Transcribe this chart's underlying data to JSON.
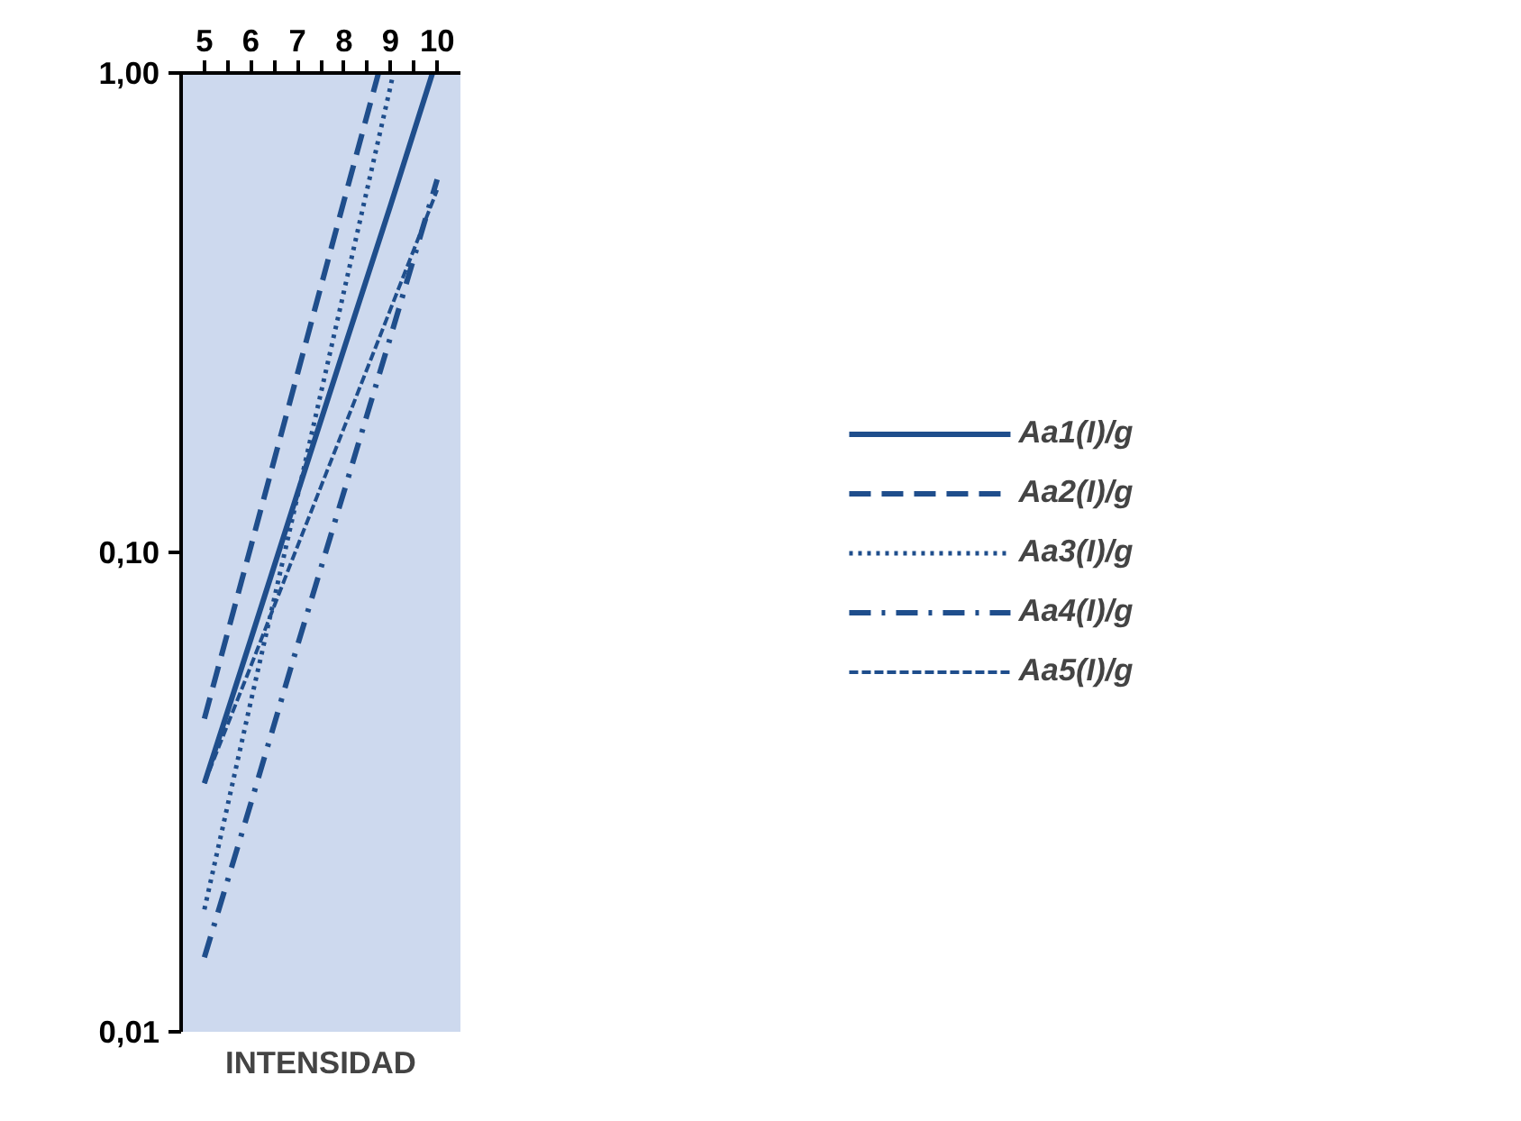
{
  "chart_data": {
    "type": "line",
    "xlabel": "INTENSIDAD",
    "log": "y",
    "grid": false,
    "legend": "right",
    "marker": "none",
    "xlim": [
      4.5,
      10.5
    ],
    "xticks": [
      5,
      6,
      7,
      8,
      9,
      10,
      {
        "value": 5.5,
        "label": null
      },
      {
        "value": 6.5,
        "label": null
      },
      {
        "value": 7.5,
        "label": null
      },
      {
        "value": 8.5,
        "label": null
      },
      {
        "value": 9.5,
        "label": null
      }
    ],
    "ylim": [
      0.01,
      1.0
    ],
    "yticks": [
      {
        "value": 0.01,
        "label": "0,01"
      },
      {
        "value": 0.1,
        "label": "0,10"
      },
      {
        "value": 1.0,
        "label": "1,00"
      }
    ],
    "series": [
      {
        "name": "Aa1(I)/g",
        "color": "#1f4e8c",
        "line_style": "solid",
        "x": [
          5,
          6,
          7,
          8,
          9,
          9.9
        ],
        "values": [
          0.033,
          0.066,
          0.133,
          0.266,
          0.53,
          1.0
        ]
      },
      {
        "name": "Aa2(I)/g",
        "color": "#1f4e8c",
        "line_style": "dashed",
        "x": [
          5,
          6,
          7,
          8,
          8.74
        ],
        "values": [
          0.045,
          0.103,
          0.236,
          0.542,
          1.0
        ]
      },
      {
        "name": "Aa3(I)/g",
        "color": "#1f4e8c",
        "line_style": "dotted",
        "x": [
          5,
          6,
          7,
          8,
          9,
          9.06
        ],
        "values": [
          0.018,
          0.049,
          0.131,
          0.351,
          0.94,
          1.0
        ]
      },
      {
        "name": "Aa4(I)/g",
        "color": "#1f4e8c",
        "line_style": "dashdot",
        "x": [
          5,
          6,
          7,
          8,
          9,
          10
        ],
        "values": [
          0.0143,
          0.03,
          0.064,
          0.134,
          0.282,
          0.6
        ]
      },
      {
        "name": "Aa5(I)/g",
        "color": "#1f4e8c",
        "line_style": "double",
        "x": [
          5,
          6,
          7,
          8,
          9,
          10
        ],
        "values": [
          0.033,
          0.058,
          0.103,
          0.182,
          0.322,
          0.57
        ]
      }
    ]
  }
}
